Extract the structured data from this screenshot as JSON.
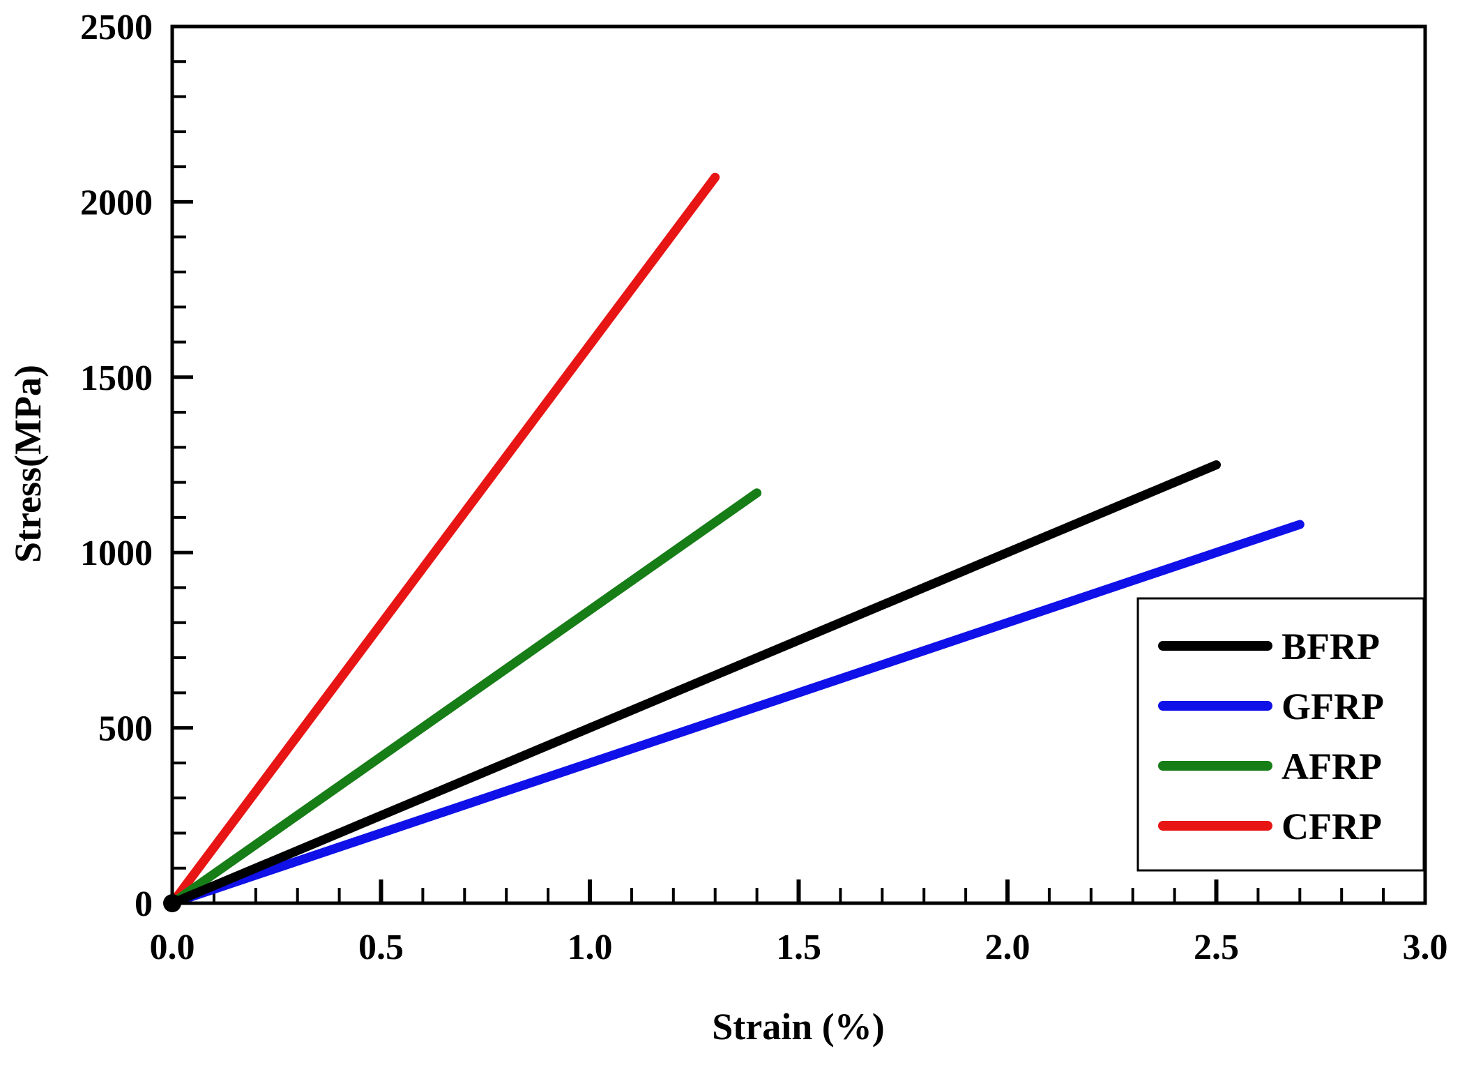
{
  "chart_data": {
    "type": "line",
    "title": "",
    "xlabel": "Strain (%)",
    "ylabel": "Stress(MPa)",
    "xlim": [
      0,
      3.0
    ],
    "ylim": [
      0,
      2500
    ],
    "x_major_ticks": [
      0.0,
      0.5,
      1.0,
      1.5,
      2.0,
      2.5,
      3.0
    ],
    "x_tick_labels": [
      "0.0",
      "0.5",
      "1.0",
      "1.5",
      "2.0",
      "2.5",
      "3.0"
    ],
    "x_minor_step": 0.1,
    "y_major_ticks": [
      0,
      500,
      1000,
      1500,
      2000,
      2500
    ],
    "y_tick_labels": [
      "0",
      "500",
      "1000",
      "1500",
      "2000",
      "2500"
    ],
    "y_minor_step": 100,
    "grid": false,
    "legend_position": "bottom-right",
    "series": [
      {
        "name": "BFRP",
        "color": "#000000",
        "x": [
          0,
          2.5
        ],
        "y": [
          0,
          1250
        ]
      },
      {
        "name": "GFRP",
        "color": "#1010e8",
        "x": [
          0,
          2.7
        ],
        "y": [
          0,
          1080
        ]
      },
      {
        "name": "AFRP",
        "color": "#177d17",
        "x": [
          0,
          1.4
        ],
        "y": [
          0,
          1170
        ]
      },
      {
        "name": "CFRP",
        "color": "#e81515",
        "x": [
          0,
          1.3
        ],
        "y": [
          0,
          2070
        ]
      }
    ]
  }
}
